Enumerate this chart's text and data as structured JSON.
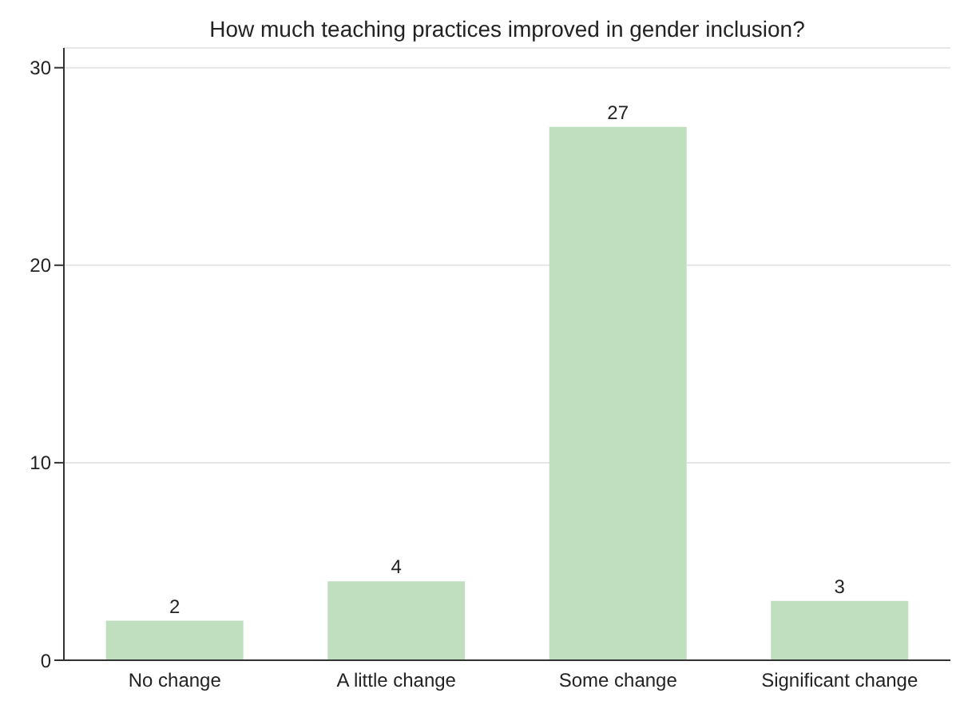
{
  "chart_data": {
    "type": "bar",
    "title": "How much teaching practices improved in gender inclusion?",
    "categories": [
      "No change",
      "A little change",
      "Some change",
      "Significant change"
    ],
    "values": [
      2,
      4,
      27,
      3
    ],
    "color": "#bfdfbf",
    "ylim": [
      0,
      31
    ],
    "yticks": [
      0,
      10,
      20,
      30
    ],
    "grid": "y",
    "data_labels": true
  }
}
